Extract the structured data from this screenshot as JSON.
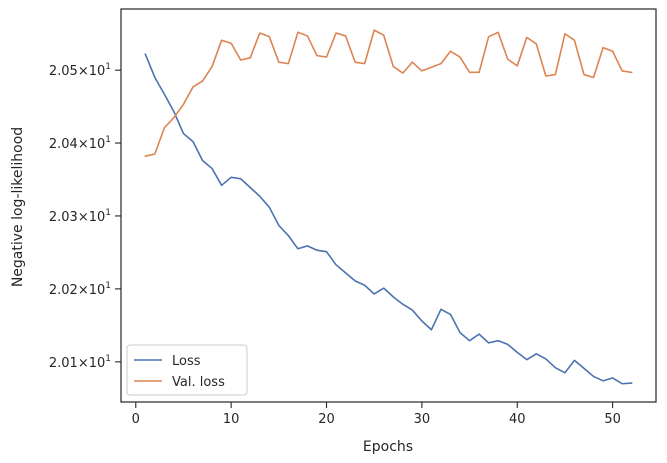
{
  "chart_data": {
    "type": "line",
    "xlabel": "Epochs",
    "ylabel": "Negative log-likelihood",
    "xlim": [
      -1.55,
      54.55
    ],
    "ylim": [
      20.0045,
      20.0584
    ],
    "x_ticks": [
      0,
      10,
      20,
      30,
      40,
      50
    ],
    "y_ticks": [
      {
        "value": 20.01,
        "mantissa": "2.01",
        "base": "10",
        "exp": "1"
      },
      {
        "value": 20.02,
        "mantissa": "2.02",
        "base": "10",
        "exp": "1"
      },
      {
        "value": 20.03,
        "mantissa": "2.03",
        "base": "10",
        "exp": "1"
      },
      {
        "value": 20.04,
        "mantissa": "2.04",
        "base": "10",
        "exp": "1"
      },
      {
        "value": 20.05,
        "mantissa": "2.05",
        "base": "10",
        "exp": "1"
      }
    ],
    "y_scale": "log",
    "grid": false,
    "legend_position": "lower-left",
    "x": [
      1,
      2,
      3,
      4,
      5,
      6,
      7,
      8,
      9,
      10,
      11,
      12,
      13,
      14,
      15,
      16,
      17,
      18,
      19,
      20,
      21,
      22,
      23,
      24,
      25,
      26,
      27,
      28,
      29,
      30,
      31,
      32,
      33,
      34,
      35,
      36,
      37,
      38,
      39,
      40,
      41,
      42,
      43,
      44,
      45,
      46,
      47,
      48,
      49,
      50,
      51,
      52
    ],
    "series": [
      {
        "name": "Loss",
        "color": "#4c72b0",
        "values": [
          20.0522,
          20.049,
          20.0467,
          20.0443,
          20.0413,
          20.0402,
          20.0376,
          20.0365,
          20.0342,
          20.0353,
          20.0351,
          20.0339,
          20.0327,
          20.0312,
          20.0287,
          20.0273,
          20.0255,
          20.0259,
          20.0253,
          20.0251,
          20.0233,
          20.0222,
          20.0211,
          20.0205,
          20.0193,
          20.0201,
          20.0189,
          20.0179,
          20.0171,
          20.0156,
          20.0144,
          20.0172,
          20.0165,
          20.014,
          20.0129,
          20.0138,
          20.0126,
          20.0129,
          20.0124,
          20.0113,
          20.0103,
          20.0111,
          20.0104,
          20.0092,
          20.0085,
          20.0102,
          20.0091,
          20.008,
          20.0074,
          20.0078,
          20.007,
          20.0071
        ]
      },
      {
        "name": "Val. loss",
        "color": "#dd8452",
        "values": [
          20.0382,
          20.0385,
          20.0421,
          20.0435,
          20.0453,
          20.0477,
          20.0485,
          20.0505,
          20.0541,
          20.0537,
          20.0514,
          20.0517,
          20.0551,
          20.0546,
          20.0511,
          20.0509,
          20.0552,
          20.0547,
          20.052,
          20.0518,
          20.0551,
          20.0547,
          20.0511,
          20.0509,
          20.0555,
          20.0548,
          20.0505,
          20.0496,
          20.0511,
          20.0499,
          20.0504,
          20.0509,
          20.0526,
          20.0518,
          20.0497,
          20.0497,
          20.0546,
          20.0552,
          20.0515,
          20.0506,
          20.0545,
          20.0536,
          20.0492,
          20.0494,
          20.055,
          20.0541,
          20.0494,
          20.049,
          20.0531,
          20.0526,
          20.0499,
          20.0497
        ]
      }
    ]
  }
}
